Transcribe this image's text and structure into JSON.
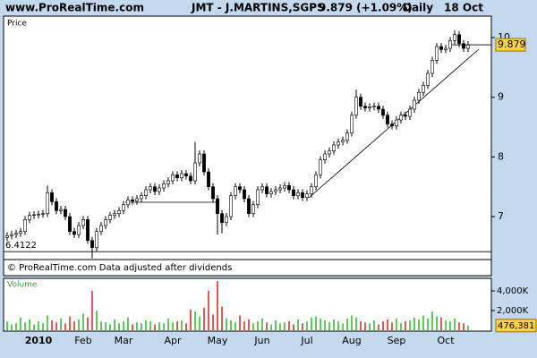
{
  "header": {
    "site": "www.ProRealTime.com",
    "title": "JMT - J.MARTINS,SGPS",
    "quote": "9.879 (+1.09%)",
    "period": "Daily",
    "date": "18 Oct"
  },
  "chart_data": [
    {
      "type": "candlestick",
      "label": "Price",
      "footer": "© ProRealTime.com  Data adjusted after dividends",
      "categories": [
        null,
        null,
        null,
        null,
        null,
        null,
        null,
        "2010",
        null,
        null,
        null,
        null,
        null,
        null,
        null,
        null,
        null,
        "Feb",
        null,
        null,
        null,
        null,
        null,
        null,
        null,
        null,
        "Mar",
        null,
        null,
        null,
        null,
        null,
        null,
        null,
        null,
        null,
        null,
        "Apr",
        null,
        null,
        null,
        null,
        null,
        null,
        null,
        null,
        null,
        "May",
        null,
        null,
        null,
        null,
        null,
        null,
        null,
        null,
        null,
        "Jun",
        null,
        null,
        null,
        null,
        null,
        null,
        null,
        null,
        null,
        "Jul",
        null,
        null,
        null,
        null,
        null,
        null,
        null,
        null,
        null,
        "Aug",
        null,
        null,
        null,
        null,
        null,
        null,
        null,
        null,
        null,
        "Sep",
        null,
        null,
        null,
        null,
        null,
        null,
        null,
        null,
        null,
        null,
        "Oct",
        null,
        null,
        null,
        null,
        null
      ],
      "open": [
        6.65,
        6.68,
        6.7,
        6.72,
        6.75,
        6.95,
        7.02,
        7.03,
        7.04,
        7.05,
        7.4,
        7.25,
        7.1,
        7.12,
        7.0,
        6.75,
        6.7,
        6.85,
        6.95,
        6.6,
        6.48,
        6.75,
        6.85,
        6.95,
        7.02,
        7.05,
        7.1,
        7.2,
        7.28,
        7.26,
        7.3,
        7.35,
        7.45,
        7.5,
        7.42,
        7.48,
        7.55,
        7.6,
        7.7,
        7.65,
        7.72,
        7.68,
        7.6,
        7.9,
        8.05,
        7.75,
        7.5,
        7.3,
        7.05,
        6.9,
        7.0,
        7.35,
        7.5,
        7.45,
        7.3,
        7.05,
        7.2,
        7.45,
        7.5,
        7.38,
        7.42,
        7.45,
        7.48,
        7.52,
        7.45,
        7.35,
        7.4,
        7.32,
        7.38,
        7.5,
        7.7,
        7.95,
        8.05,
        8.1,
        8.2,
        8.25,
        8.28,
        8.4,
        8.7,
        9.0,
        8.85,
        8.82,
        8.84,
        8.85,
        8.8,
        8.7,
        8.55,
        8.52,
        8.62,
        8.7,
        8.68,
        8.8,
        8.95,
        9.08,
        9.2,
        9.4,
        9.62,
        9.85,
        9.8,
        9.82,
        9.95,
        10.05,
        9.9,
        9.82
      ],
      "high": [
        6.74,
        6.76,
        6.78,
        6.81,
        7.01,
        7.08,
        7.09,
        7.1,
        7.11,
        7.52,
        7.46,
        7.31,
        7.18,
        7.18,
        7.06,
        6.81,
        6.91,
        7.01,
        7.01,
        6.66,
        6.81,
        6.91,
        7.01,
        7.08,
        7.11,
        7.16,
        7.26,
        7.34,
        7.34,
        7.36,
        7.41,
        7.51,
        7.56,
        7.56,
        7.54,
        7.61,
        7.66,
        7.76,
        7.76,
        7.78,
        7.78,
        7.74,
        8.25,
        8.11,
        8.11,
        7.81,
        7.56,
        7.36,
        7.11,
        7.06,
        7.41,
        7.56,
        7.56,
        7.51,
        7.36,
        7.26,
        7.51,
        7.56,
        7.56,
        7.48,
        7.51,
        7.54,
        7.58,
        7.58,
        7.51,
        7.46,
        7.46,
        7.44,
        7.56,
        7.76,
        8.01,
        8.11,
        8.16,
        8.26,
        8.31,
        8.34,
        8.46,
        8.76,
        9.13,
        9.06,
        8.91,
        8.9,
        8.91,
        8.91,
        8.86,
        8.76,
        8.61,
        8.68,
        8.76,
        8.76,
        8.86,
        9.01,
        9.14,
        9.26,
        9.46,
        9.68,
        9.91,
        9.91,
        9.88,
        10.01,
        10.12,
        10.11,
        9.96,
        9.94
      ],
      "low": [
        6.59,
        6.62,
        6.64,
        6.66,
        6.69,
        6.89,
        6.96,
        6.97,
        6.98,
        6.99,
        7.19,
        7.04,
        7.04,
        6.94,
        6.69,
        6.64,
        6.64,
        6.79,
        6.54,
        6.3,
        6.42,
        6.69,
        6.79,
        6.89,
        6.96,
        6.99,
        7.04,
        7.14,
        7.2,
        7.2,
        7.24,
        7.29,
        7.39,
        7.36,
        7.36,
        7.42,
        7.49,
        7.54,
        7.59,
        7.59,
        7.62,
        7.54,
        7.54,
        7.84,
        7.69,
        7.44,
        7.24,
        6.7,
        6.72,
        6.84,
        6.94,
        7.29,
        7.39,
        7.24,
        6.99,
        6.99,
        7.14,
        7.39,
        7.32,
        7.32,
        7.36,
        7.39,
        7.42,
        7.39,
        7.29,
        7.29,
        7.26,
        7.26,
        7.32,
        7.44,
        7.64,
        7.89,
        7.99,
        8.04,
        8.14,
        8.19,
        8.22,
        8.34,
        8.64,
        8.79,
        8.76,
        8.76,
        8.78,
        8.74,
        8.64,
        8.49,
        8.46,
        8.46,
        8.56,
        8.62,
        8.62,
        8.74,
        8.89,
        9.02,
        9.14,
        9.34,
        9.56,
        9.74,
        9.74,
        9.76,
        9.89,
        9.84,
        9.76,
        9.76
      ],
      "close": [
        6.68,
        6.7,
        6.72,
        6.75,
        6.95,
        7.02,
        7.03,
        7.04,
        7.05,
        7.4,
        7.25,
        7.1,
        7.12,
        7.0,
        6.75,
        6.7,
        6.85,
        6.95,
        6.6,
        6.48,
        6.75,
        6.85,
        6.95,
        7.02,
        7.05,
        7.1,
        7.2,
        7.28,
        7.26,
        7.3,
        7.35,
        7.45,
        7.5,
        7.42,
        7.48,
        7.55,
        7.6,
        7.7,
        7.65,
        7.72,
        7.68,
        7.6,
        7.9,
        8.05,
        7.75,
        7.5,
        7.3,
        7.05,
        6.9,
        7.0,
        7.35,
        7.5,
        7.45,
        7.3,
        7.05,
        7.2,
        7.45,
        7.5,
        7.38,
        7.42,
        7.45,
        7.48,
        7.52,
        7.45,
        7.35,
        7.4,
        7.32,
        7.38,
        7.5,
        7.7,
        7.95,
        8.05,
        8.1,
        8.2,
        8.25,
        8.28,
        8.4,
        8.7,
        9.0,
        8.85,
        8.82,
        8.84,
        8.85,
        8.8,
        8.7,
        8.55,
        8.52,
        8.62,
        8.7,
        8.68,
        8.8,
        8.95,
        9.08,
        9.2,
        9.4,
        9.62,
        9.85,
        9.8,
        9.82,
        9.95,
        10.05,
        9.9,
        9.82,
        9.879
      ],
      "up_color": "#ffffff",
      "down_color": "#000000",
      "ylim": [
        6.28,
        10.36
      ],
      "yticks": [
        7,
        8,
        9,
        10
      ],
      "last": 9.879,
      "low_line": 6.4122
    },
    {
      "type": "bar",
      "label": "Volume",
      "values": [
        900000,
        600000,
        700000,
        1300000,
        800000,
        1100000,
        600000,
        900000,
        700000,
        1500000,
        1000000,
        800000,
        1200000,
        700000,
        1400000,
        900000,
        1100000,
        1700000,
        1300000,
        4000000,
        2000000,
        900000,
        800000,
        600000,
        1100000,
        700000,
        900000,
        1300000,
        600000,
        800000,
        700000,
        1000000,
        900000,
        600000,
        800000,
        700000,
        1200000,
        800000,
        900000,
        1000000,
        700000,
        2100000,
        1900000,
        1400000,
        2300000,
        4000000,
        1600000,
        5000000,
        2400000,
        1200000,
        1000000,
        800000,
        1500000,
        900000,
        1100000,
        700000,
        900000,
        1200000,
        800000,
        600000,
        1000000,
        700000,
        800000,
        900000,
        600000,
        1100000,
        700000,
        900000,
        1300000,
        1400000,
        1200000,
        1000000,
        800000,
        1100000,
        900000,
        700000,
        1200000,
        1500000,
        1300000,
        900000,
        800000,
        700000,
        1000000,
        600000,
        900000,
        1100000,
        800000,
        1200000,
        700000,
        900000,
        1000000,
        1300000,
        1100000,
        1500000,
        1200000,
        1900000,
        1400000,
        1300000,
        1000000,
        900000,
        1200000,
        800000,
        700000,
        476381
      ],
      "up_color": "#5fc85f",
      "down_color": "#e05a5a",
      "ylim": [
        0,
        5270000
      ],
      "yticks": [
        {
          "value": 2000000,
          "label": "2,000K"
        },
        {
          "value": 4000000,
          "label": "4,000K"
        }
      ],
      "last": {
        "value": 476381,
        "label": "476,381"
      }
    }
  ]
}
